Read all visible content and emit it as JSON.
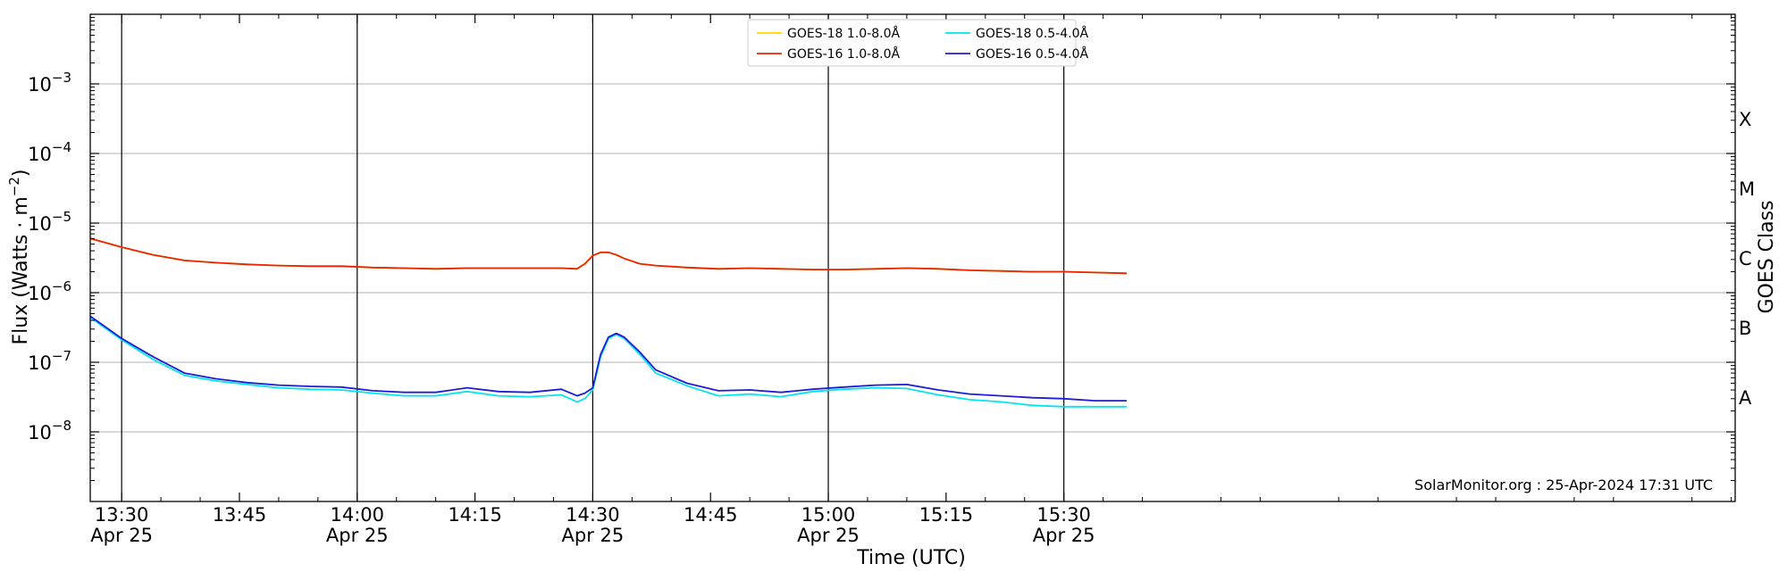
{
  "chart_data": {
    "type": "line",
    "title": "",
    "xlabel": "Time (UTC)",
    "ylabel": "Flux (Watts · m⁻²)",
    "ylabel_base": "Flux (Watts · m",
    "ylabel_sup": "−2",
    "ylabel_close": ")",
    "right_label": "GOES Class",
    "y_scale": "log",
    "ylim": [
      1e-09,
      0.01
    ],
    "x_range_minutes": [
      806,
      1015.5
    ],
    "grid": "horizontal at each decade, vertical at half-hours",
    "legend_position": "top-center",
    "x_ticks": [
      {
        "minute": 810,
        "label": "13:30",
        "date": "Apr 25"
      },
      {
        "minute": 825,
        "label": "13:45",
        "date": ""
      },
      {
        "minute": 840,
        "label": "14:00",
        "date": "Apr 25"
      },
      {
        "minute": 855,
        "label": "14:15",
        "date": ""
      },
      {
        "minute": 870,
        "label": "14:30",
        "date": "Apr 25"
      },
      {
        "minute": 885,
        "label": "14:45",
        "date": ""
      },
      {
        "minute": 900,
        "label": "15:00",
        "date": "Apr 25"
      },
      {
        "minute": 915,
        "label": "15:15",
        "date": ""
      },
      {
        "minute": 930,
        "label": "15:30",
        "date": "Apr 25"
      }
    ],
    "y_ticks": [
      {
        "exp": -8,
        "label": "10",
        "sup": "−8"
      },
      {
        "exp": -7,
        "label": "10",
        "sup": "−7"
      },
      {
        "exp": -6,
        "label": "10",
        "sup": "−6"
      },
      {
        "exp": -5,
        "label": "10",
        "sup": "−5"
      },
      {
        "exp": -4,
        "label": "10",
        "sup": "−4"
      },
      {
        "exp": -3,
        "label": "10",
        "sup": "−3"
      }
    ],
    "goes_classes": [
      {
        "label": "A",
        "flux": 1e-08
      },
      {
        "label": "B",
        "flux": 1e-07
      },
      {
        "label": "C",
        "flux": 1e-06
      },
      {
        "label": "M",
        "flux": 1e-05
      },
      {
        "label": "X",
        "flux": 0.0001
      }
    ],
    "x_minutes": [
      806,
      810,
      814,
      818,
      822,
      826,
      830,
      834,
      838,
      842,
      846,
      850,
      854,
      858,
      862,
      866,
      868,
      869,
      870,
      871,
      872,
      873,
      874,
      876,
      878,
      882,
      886,
      890,
      894,
      898,
      902,
      906,
      910,
      914,
      918,
      922,
      926,
      930,
      934,
      938
    ],
    "series": [
      {
        "name": "GOES-18 1.0-8.0Å",
        "color": "#ffd700",
        "values": [
          6e-06,
          4.5e-06,
          3.5e-06,
          2.9e-06,
          2.7e-06,
          2.55e-06,
          2.45e-06,
          2.4e-06,
          2.4e-06,
          2.3e-06,
          2.25e-06,
          2.2e-06,
          2.25e-06,
          2.25e-06,
          2.25e-06,
          2.25e-06,
          2.2e-06,
          2.6e-06,
          3.4e-06,
          3.8e-06,
          3.8e-06,
          3.5e-06,
          3.1e-06,
          2.6e-06,
          2.45e-06,
          2.3e-06,
          2.2e-06,
          2.25e-06,
          2.2e-06,
          2.15e-06,
          2.15e-06,
          2.2e-06,
          2.25e-06,
          2.2e-06,
          2.1e-06,
          2.05e-06,
          2e-06,
          2e-06,
          1.95e-06,
          1.9e-06
        ]
      },
      {
        "name": "GOES-16 1.0-8.0Å",
        "color": "#ee2200",
        "values": [
          6e-06,
          4.5e-06,
          3.5e-06,
          2.9e-06,
          2.7e-06,
          2.55e-06,
          2.45e-06,
          2.4e-06,
          2.4e-06,
          2.3e-06,
          2.25e-06,
          2.2e-06,
          2.25e-06,
          2.25e-06,
          2.25e-06,
          2.25e-06,
          2.2e-06,
          2.6e-06,
          3.4e-06,
          3.8e-06,
          3.8e-06,
          3.5e-06,
          3.1e-06,
          2.6e-06,
          2.45e-06,
          2.3e-06,
          2.2e-06,
          2.25e-06,
          2.2e-06,
          2.15e-06,
          2.15e-06,
          2.2e-06,
          2.25e-06,
          2.2e-06,
          2.1e-06,
          2.05e-06,
          2e-06,
          2e-06,
          1.95e-06,
          1.9e-06
        ]
      },
      {
        "name": "GOES-18 0.5-4.0Å",
        "color": "#00e5ee",
        "values": [
          4.4e-07,
          2.1e-07,
          1.1e-07,
          6.5e-08,
          5.4e-08,
          4.8e-08,
          4.3e-08,
          4.1e-08,
          4e-08,
          3.6e-08,
          3.3e-08,
          3.3e-08,
          3.8e-08,
          3.3e-08,
          3.2e-08,
          3.4e-08,
          2.7e-08,
          3e-08,
          4e-08,
          1.2e-07,
          2.2e-07,
          2.5e-07,
          2.2e-07,
          1.3e-07,
          7e-08,
          4.6e-08,
          3.3e-08,
          3.5e-08,
          3.2e-08,
          3.8e-08,
          4.1e-08,
          4.3e-08,
          4.2e-08,
          3.4e-08,
          2.9e-08,
          2.7e-08,
          2.4e-08,
          2.3e-08,
          2.3e-08,
          2.3e-08
        ]
      },
      {
        "name": "GOES-16 0.5-4.0Å",
        "color": "#1c1cd9",
        "values": [
          4.6e-07,
          2.2e-07,
          1.2e-07,
          7e-08,
          5.8e-08,
          5.1e-08,
          4.7e-08,
          4.5e-08,
          4.4e-08,
          3.9e-08,
          3.7e-08,
          3.7e-08,
          4.3e-08,
          3.8e-08,
          3.7e-08,
          4.1e-08,
          3.3e-08,
          3.6e-08,
          4.3e-08,
          1.3e-07,
          2.3e-07,
          2.6e-07,
          2.3e-07,
          1.4e-07,
          7.8e-08,
          5e-08,
          3.9e-08,
          4e-08,
          3.7e-08,
          4.1e-08,
          4.4e-08,
          4.7e-08,
          4.8e-08,
          4e-08,
          3.5e-08,
          3.3e-08,
          3.1e-08,
          3e-08,
          2.8e-08,
          2.8e-08
        ]
      }
    ],
    "legend": [
      {
        "label": "GOES-18 1.0-8.0Å",
        "color": "#ffd700"
      },
      {
        "label": "GOES-16 1.0-8.0Å",
        "color": "#ee2200"
      },
      {
        "label": "GOES-18 0.5-4.0Å",
        "color": "#00e5ee"
      },
      {
        "label": "GOES-16 0.5-4.0Å",
        "color": "#1c1cd9"
      }
    ],
    "annotation": "SolarMonitor.org : 25-Apr-2024 17:31 UTC"
  }
}
